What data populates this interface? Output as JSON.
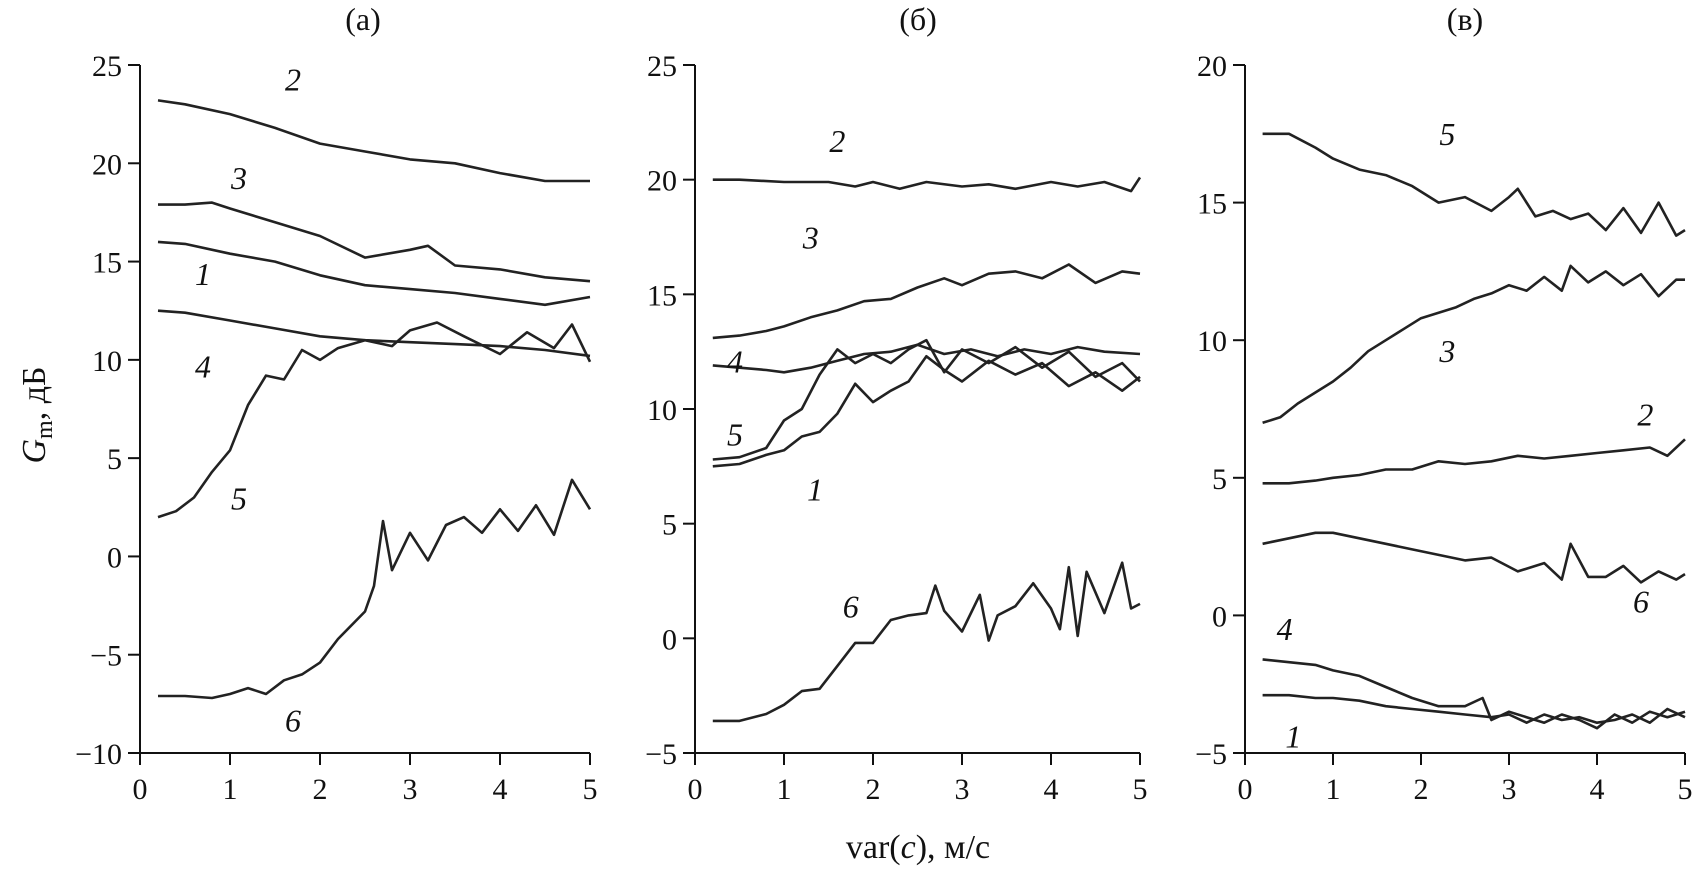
{
  "figure": {
    "ylabel_main": "G",
    "ylabel_sub": "m",
    "ylabel_unit": ", дБ",
    "xlabel_pre": "var(",
    "xlabel_var": "c",
    "xlabel_post": "), м/с"
  },
  "chart_data": [
    {
      "type": "line",
      "panel_label": "(а)",
      "xlim": [
        0,
        5
      ],
      "ylim": [
        -10,
        25
      ],
      "xticks": [
        0,
        1,
        2,
        3,
        4,
        5
      ],
      "yticks": [
        -10,
        -5,
        0,
        5,
        10,
        15,
        20,
        25
      ],
      "series": [
        {
          "name": "2",
          "x": [
            0.2,
            0.5,
            1.0,
            1.5,
            2.0,
            2.5,
            3.0,
            3.5,
            4.0,
            4.5,
            5.0
          ],
          "values": [
            23.2,
            23.0,
            22.5,
            21.8,
            21.0,
            20.6,
            20.2,
            20.0,
            19.5,
            19.1,
            19.1
          ]
        },
        {
          "name": "3",
          "x": [
            0.2,
            0.5,
            0.8,
            1.0,
            1.5,
            2.0,
            2.5,
            3.0,
            3.2,
            3.5,
            4.0,
            4.5,
            5.0
          ],
          "values": [
            17.9,
            17.9,
            18.0,
            17.7,
            17.0,
            16.3,
            15.2,
            15.6,
            15.8,
            14.8,
            14.6,
            14.2,
            14.0
          ]
        },
        {
          "name": "1",
          "x": [
            0.2,
            0.5,
            1.0,
            1.5,
            2.0,
            2.5,
            3.0,
            3.5,
            4.0,
            4.5,
            5.0
          ],
          "values": [
            16.0,
            15.9,
            15.4,
            15.0,
            14.3,
            13.8,
            13.6,
            13.4,
            13.1,
            12.8,
            13.2
          ]
        },
        {
          "name": "4",
          "x": [
            0.2,
            0.5,
            1.0,
            1.5,
            2.0,
            2.5,
            3.0,
            3.5,
            4.0,
            4.5,
            5.0
          ],
          "values": [
            12.5,
            12.4,
            12.0,
            11.6,
            11.2,
            11.0,
            10.9,
            10.8,
            10.7,
            10.5,
            10.2
          ]
        },
        {
          "name": "5",
          "x": [
            0.2,
            0.4,
            0.6,
            0.8,
            1.0,
            1.2,
            1.4,
            1.6,
            1.8,
            2.0,
            2.2,
            2.5,
            2.8,
            3.0,
            3.3,
            3.6,
            4.0,
            4.3,
            4.6,
            4.8,
            5.0
          ],
          "values": [
            2.0,
            2.3,
            3.0,
            4.3,
            5.4,
            7.7,
            9.2,
            9.0,
            10.5,
            10.0,
            10.6,
            11.0,
            10.7,
            11.5,
            11.9,
            11.2,
            10.3,
            11.4,
            10.6,
            11.8,
            9.9
          ]
        },
        {
          "name": "6",
          "x": [
            0.2,
            0.5,
            0.8,
            1.0,
            1.2,
            1.4,
            1.6,
            1.8,
            2.0,
            2.2,
            2.5,
            2.6,
            2.7,
            2.8,
            3.0,
            3.2,
            3.4,
            3.6,
            3.8,
            4.0,
            4.2,
            4.4,
            4.6,
            4.8,
            5.0
          ],
          "values": [
            -7.1,
            -7.1,
            -7.2,
            -7.0,
            -6.7,
            -7.0,
            -6.3,
            -6.0,
            -5.4,
            -4.2,
            -2.8,
            -1.5,
            1.8,
            -0.7,
            1.2,
            -0.2,
            1.6,
            2.0,
            1.2,
            2.4,
            1.3,
            2.6,
            1.1,
            3.9,
            2.4
          ]
        }
      ]
    },
    {
      "type": "line",
      "panel_label": "(б)",
      "xlim": [
        0,
        5
      ],
      "ylim": [
        -5,
        25
      ],
      "xticks": [
        0,
        1,
        2,
        3,
        4,
        5
      ],
      "yticks": [
        -5,
        0,
        5,
        10,
        15,
        20,
        25
      ],
      "series": [
        {
          "name": "2",
          "x": [
            0.2,
            0.5,
            1.0,
            1.5,
            1.8,
            2.0,
            2.3,
            2.6,
            3.0,
            3.3,
            3.6,
            4.0,
            4.3,
            4.6,
            4.9,
            5.0
          ],
          "values": [
            20.0,
            20.0,
            19.9,
            19.9,
            19.7,
            19.9,
            19.6,
            19.9,
            19.7,
            19.8,
            19.6,
            19.9,
            19.7,
            19.9,
            19.5,
            20.1
          ]
        },
        {
          "name": "3",
          "x": [
            0.2,
            0.5,
            0.8,
            1.0,
            1.3,
            1.6,
            1.9,
            2.2,
            2.5,
            2.8,
            3.0,
            3.3,
            3.6,
            3.9,
            4.2,
            4.5,
            4.8,
            5.0
          ],
          "values": [
            13.1,
            13.2,
            13.4,
            13.6,
            14.0,
            14.3,
            14.7,
            14.8,
            15.3,
            15.7,
            15.4,
            15.9,
            16.0,
            15.7,
            16.3,
            15.5,
            16.0,
            15.9
          ]
        },
        {
          "name": "4",
          "x": [
            0.2,
            0.5,
            0.8,
            1.0,
            1.3,
            1.6,
            1.9,
            2.2,
            2.5,
            2.8,
            3.1,
            3.4,
            3.7,
            4.0,
            4.3,
            4.6,
            5.0
          ],
          "values": [
            11.9,
            11.8,
            11.7,
            11.6,
            11.8,
            12.1,
            12.4,
            12.5,
            12.8,
            12.4,
            12.6,
            12.3,
            12.6,
            12.4,
            12.7,
            12.5,
            12.4
          ]
        },
        {
          "name": "5",
          "x": [
            0.2,
            0.5,
            0.8,
            1.0,
            1.2,
            1.4,
            1.6,
            1.8,
            2.0,
            2.2,
            2.4,
            2.6,
            2.8,
            3.0,
            3.3,
            3.6,
            3.9,
            4.2,
            4.5,
            4.8,
            5.0
          ],
          "values": [
            7.8,
            7.9,
            8.3,
            9.5,
            10.0,
            11.5,
            12.6,
            12.0,
            12.4,
            12.0,
            12.6,
            13.0,
            11.6,
            12.6,
            12.0,
            12.7,
            11.8,
            12.5,
            11.4,
            12.0,
            11.2
          ]
        },
        {
          "name": "1",
          "x": [
            0.2,
            0.5,
            0.8,
            1.0,
            1.2,
            1.4,
            1.6,
            1.8,
            2.0,
            2.2,
            2.4,
            2.6,
            2.8,
            3.0,
            3.3,
            3.6,
            3.9,
            4.2,
            4.5,
            4.8,
            5.0
          ],
          "values": [
            7.5,
            7.6,
            8.0,
            8.2,
            8.8,
            9.0,
            9.8,
            11.1,
            10.3,
            10.8,
            11.2,
            12.3,
            11.7,
            11.2,
            12.1,
            11.5,
            12.0,
            11.0,
            11.6,
            10.8,
            11.4
          ]
        },
        {
          "name": "6",
          "x": [
            0.2,
            0.5,
            0.8,
            1.0,
            1.2,
            1.4,
            1.6,
            1.8,
            2.0,
            2.2,
            2.4,
            2.6,
            2.7,
            2.8,
            3.0,
            3.2,
            3.3,
            3.4,
            3.6,
            3.8,
            4.0,
            4.1,
            4.2,
            4.3,
            4.4,
            4.6,
            4.8,
            4.9,
            5.0
          ],
          "values": [
            -3.6,
            -3.6,
            -3.3,
            -2.9,
            -2.3,
            -2.2,
            -1.2,
            -0.2,
            -0.2,
            0.8,
            1.0,
            1.1,
            2.3,
            1.2,
            0.3,
            1.9,
            -0.1,
            1.0,
            1.4,
            2.4,
            1.3,
            0.4,
            3.1,
            0.1,
            2.9,
            1.1,
            3.3,
            1.3,
            1.5
          ]
        }
      ]
    },
    {
      "type": "line",
      "panel_label": "(в)",
      "xlim": [
        0,
        5
      ],
      "ylim": [
        -5,
        20
      ],
      "xticks": [
        0,
        1,
        2,
        3,
        4,
        5
      ],
      "yticks": [
        -5,
        0,
        5,
        10,
        15,
        20
      ],
      "series": [
        {
          "name": "5",
          "x": [
            0.2,
            0.5,
            0.8,
            1.0,
            1.3,
            1.6,
            1.9,
            2.2,
            2.5,
            2.8,
            3.0,
            3.1,
            3.3,
            3.5,
            3.7,
            3.9,
            4.1,
            4.3,
            4.5,
            4.7,
            4.9,
            5.0
          ],
          "values": [
            17.5,
            17.5,
            17.0,
            16.6,
            16.2,
            16.0,
            15.6,
            15.0,
            15.2,
            14.7,
            15.2,
            15.5,
            14.5,
            14.7,
            14.4,
            14.6,
            14.0,
            14.8,
            13.9,
            15.0,
            13.8,
            14.0
          ]
        },
        {
          "name": "3",
          "x": [
            0.2,
            0.4,
            0.6,
            0.8,
            1.0,
            1.2,
            1.4,
            1.6,
            1.8,
            2.0,
            2.2,
            2.4,
            2.6,
            2.8,
            3.0,
            3.2,
            3.4,
            3.6,
            3.7,
            3.9,
            4.1,
            4.3,
            4.5,
            4.7,
            4.9,
            5.0
          ],
          "values": [
            7.0,
            7.2,
            7.7,
            8.1,
            8.5,
            9.0,
            9.6,
            10.0,
            10.4,
            10.8,
            11.0,
            11.2,
            11.5,
            11.7,
            12.0,
            11.8,
            12.3,
            11.8,
            12.7,
            12.1,
            12.5,
            12.0,
            12.4,
            11.6,
            12.2,
            12.2
          ]
        },
        {
          "name": "2",
          "x": [
            0.2,
            0.5,
            0.8,
            1.0,
            1.3,
            1.6,
            1.9,
            2.2,
            2.5,
            2.8,
            3.1,
            3.4,
            3.7,
            4.0,
            4.3,
            4.6,
            4.8,
            5.0
          ],
          "values": [
            4.8,
            4.8,
            4.9,
            5.0,
            5.1,
            5.3,
            5.3,
            5.6,
            5.5,
            5.6,
            5.8,
            5.7,
            5.8,
            5.9,
            6.0,
            6.1,
            5.8,
            6.4
          ]
        },
        {
          "name": "6",
          "x": [
            0.2,
            0.5,
            0.8,
            1.0,
            1.3,
            1.6,
            1.9,
            2.2,
            2.5,
            2.8,
            3.1,
            3.4,
            3.6,
            3.7,
            3.9,
            4.1,
            4.3,
            4.5,
            4.7,
            4.9,
            5.0
          ],
          "values": [
            2.6,
            2.8,
            3.0,
            3.0,
            2.8,
            2.6,
            2.4,
            2.2,
            2.0,
            2.1,
            1.6,
            1.9,
            1.3,
            2.6,
            1.4,
            1.4,
            1.8,
            1.2,
            1.6,
            1.3,
            1.5
          ]
        },
        {
          "name": "4",
          "x": [
            0.2,
            0.5,
            0.8,
            1.0,
            1.3,
            1.6,
            1.9,
            2.2,
            2.5,
            2.7,
            2.8,
            3.0,
            3.2,
            3.4,
            3.6,
            3.8,
            4.0,
            4.2,
            4.4,
            4.6,
            4.8,
            5.0
          ],
          "values": [
            -1.6,
            -1.7,
            -1.8,
            -2.0,
            -2.2,
            -2.6,
            -3.0,
            -3.3,
            -3.3,
            -3.0,
            -3.8,
            -3.5,
            -3.7,
            -3.9,
            -3.6,
            -3.8,
            -4.1,
            -3.6,
            -3.9,
            -3.5,
            -3.7,
            -3.5
          ]
        },
        {
          "name": "1",
          "x": [
            0.2,
            0.5,
            0.8,
            1.0,
            1.3,
            1.6,
            1.9,
            2.2,
            2.5,
            2.8,
            3.0,
            3.2,
            3.4,
            3.6,
            3.8,
            4.0,
            4.2,
            4.4,
            4.6,
            4.8,
            5.0
          ],
          "values": [
            -2.9,
            -2.9,
            -3.0,
            -3.0,
            -3.1,
            -3.3,
            -3.4,
            -3.5,
            -3.6,
            -3.7,
            -3.6,
            -3.9,
            -3.6,
            -3.8,
            -3.7,
            -3.9,
            -3.8,
            -3.6,
            -3.9,
            -3.4,
            -3.7
          ]
        }
      ]
    }
  ]
}
